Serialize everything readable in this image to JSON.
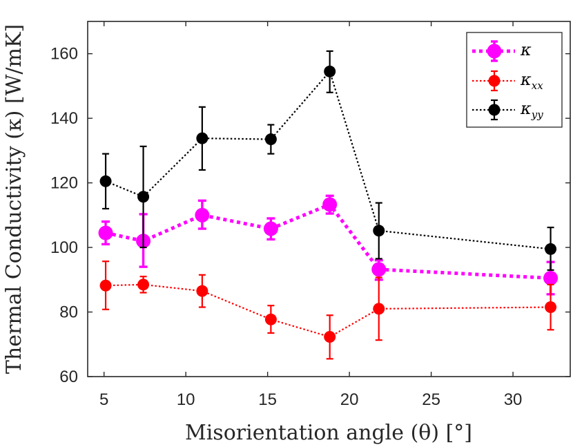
{
  "chart_data": {
    "type": "line",
    "title": "",
    "xlabel": "Misorientation angle (θ) [°]",
    "ylabel": "Thermal Conductivity (κ) [W/mK]",
    "xlim": [
      4,
      33.5
    ],
    "ylim": [
      60,
      170
    ],
    "xticks": [
      5,
      10,
      15,
      20,
      25,
      30
    ],
    "yticks": [
      60,
      80,
      100,
      120,
      140,
      160
    ],
    "legend_position": "top-right",
    "x": [
      5.1,
      7.4,
      11.0,
      15.2,
      18.8,
      21.8,
      32.3
    ],
    "series": [
      {
        "name": "κ",
        "legend_symbol": "κ",
        "legend_sub": "",
        "color": "#ff00ff",
        "line_style": "dotted-thick",
        "values": [
          104.5,
          102.0,
          110.0,
          105.8,
          113.3,
          93.2,
          90.5
        ],
        "err_low": [
          101.0,
          94.0,
          105.8,
          102.5,
          110.5,
          90.0,
          85.5
        ],
        "err_high": [
          108.0,
          110.3,
          114.5,
          109.0,
          116.0,
          96.0,
          95.5
        ]
      },
      {
        "name": "κxx",
        "legend_symbol": "κ",
        "legend_sub": "xx",
        "color": "#ff0000",
        "line_style": "dotted",
        "values": [
          88.2,
          88.5,
          86.5,
          77.7,
          72.3,
          81.0,
          81.5
        ],
        "err_low": [
          80.8,
          86.0,
          81.5,
          73.5,
          65.5,
          71.3,
          74.5
        ],
        "err_high": [
          95.7,
          91.0,
          91.5,
          82.0,
          79.0,
          90.7,
          88.5
        ]
      },
      {
        "name": "κyy",
        "legend_symbol": "κ",
        "legend_sub": "yy",
        "color": "#000000",
        "line_style": "dotted",
        "values": [
          120.5,
          115.7,
          133.8,
          133.5,
          154.5,
          105.2,
          99.5
        ],
        "err_low": [
          112.0,
          100.0,
          124.0,
          129.0,
          148.0,
          96.5,
          93.0
        ],
        "err_high": [
          129.0,
          131.3,
          143.5,
          138.0,
          160.8,
          113.8,
          106.2
        ]
      }
    ]
  }
}
